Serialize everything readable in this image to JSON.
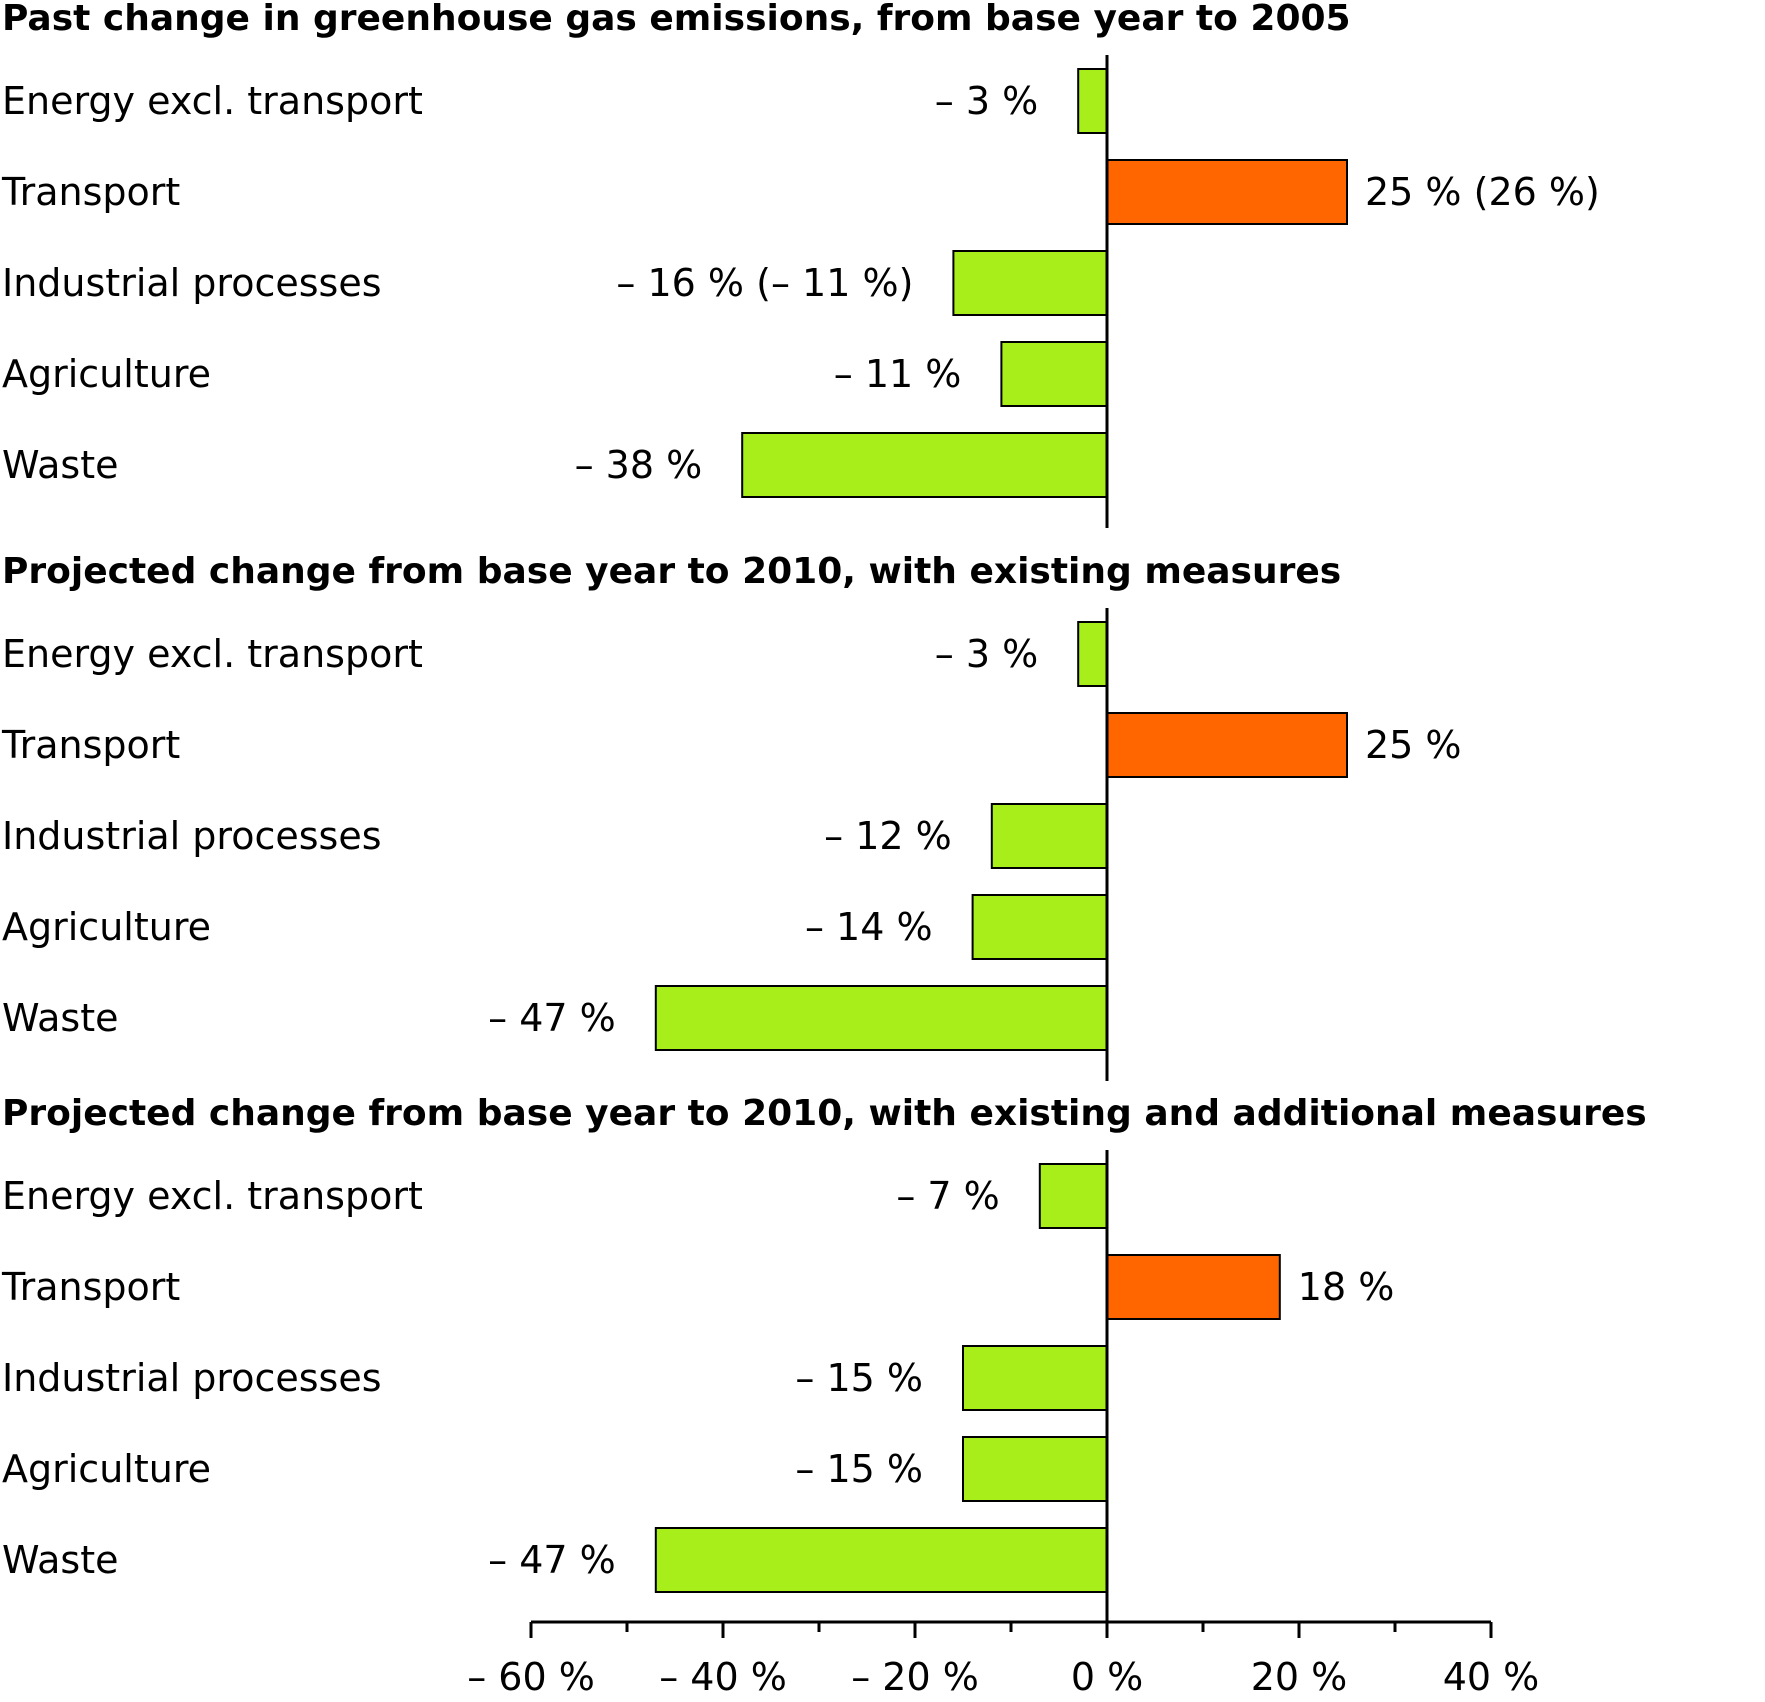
{
  "chart_data": [
    {
      "type": "bar",
      "orientation": "horizontal",
      "title": "Past change in greenhouse gas emissions, from base year to 2005",
      "categories": [
        "Energy excl. transport",
        "Transport",
        "Industrial processes",
        "Agriculture",
        "Waste"
      ],
      "values": [
        -3,
        25,
        -16,
        -11,
        -38
      ],
      "value_labels": [
        "– 3 %",
        "25 % (26 %)",
        "– 16 % (– 11 %)",
        "– 11 %",
        "– 38 %"
      ],
      "xlim": [
        -60,
        40
      ]
    },
    {
      "type": "bar",
      "orientation": "horizontal",
      "title": "Projected change from base year to 2010, with existing measures",
      "categories": [
        "Energy excl. transport",
        "Transport",
        "Industrial processes",
        "Agriculture",
        "Waste"
      ],
      "values": [
        -3,
        25,
        -12,
        -14,
        -47
      ],
      "value_labels": [
        "– 3 %",
        "25 %",
        "– 12 %",
        "– 14 %",
        "– 47 %"
      ],
      "xlim": [
        -60,
        40
      ]
    },
    {
      "type": "bar",
      "orientation": "horizontal",
      "title": "Projected change from base year to 2010, with existing and additional measures",
      "categories": [
        "Energy excl. transport",
        "Transport",
        "Industrial processes",
        "Agriculture",
        "Waste"
      ],
      "values": [
        -7,
        18,
        -15,
        -15,
        -47
      ],
      "value_labels": [
        "– 7 %",
        "18 %",
        "– 15 %",
        "– 15 %",
        "– 47 %"
      ],
      "xlim": [
        -60,
        40
      ]
    }
  ],
  "axis": {
    "ticks": [
      -60,
      -40,
      -20,
      0,
      20,
      40
    ],
    "tick_labels": [
      "– 60 %",
      "– 40 %",
      "– 20 %",
      "0 %",
      "20 %",
      "40 %"
    ],
    "minor_step": 10
  },
  "colors": {
    "decrease": "#a8ee1a",
    "increase": "#ff6600",
    "outline": "#000000"
  }
}
